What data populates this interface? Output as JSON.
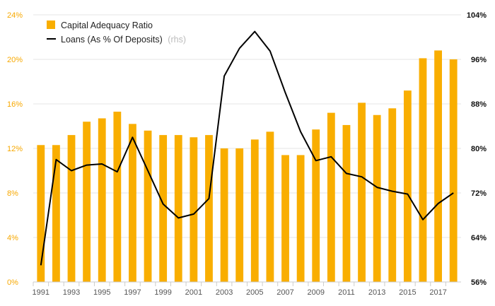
{
  "chart_data": {
    "type": "bar",
    "title": "",
    "xlabel": "",
    "ylabel": "",
    "colors": {
      "bar": "#f9ae00",
      "line": "#000000",
      "left_axis": "#f7a800",
      "right_axis": "#111111",
      "grid": "#e6e6e6"
    },
    "years": [
      1991,
      1992,
      1993,
      1994,
      1995,
      1996,
      1997,
      1998,
      1999,
      2000,
      2001,
      2002,
      2003,
      2004,
      2005,
      2006,
      2007,
      2008,
      2009,
      2010,
      2011,
      2012,
      2013,
      2014,
      2015,
      2016,
      2017,
      2018
    ],
    "x_tick_labels": [
      "1991",
      "1993",
      "1995",
      "1997",
      "1999",
      "2001",
      "2003",
      "2005",
      "2007",
      "2009",
      "2011",
      "2013",
      "2015",
      "2017"
    ],
    "series": [
      {
        "name": "Capital Adequacy Ratio",
        "axis": "left",
        "type": "bar",
        "values": [
          12.3,
          12.3,
          13.2,
          14.4,
          14.7,
          15.3,
          14.2,
          13.6,
          13.2,
          13.2,
          13.0,
          13.2,
          12.0,
          12.0,
          12.8,
          13.5,
          11.4,
          11.4,
          13.7,
          15.2,
          14.1,
          16.1,
          15.0,
          15.6,
          17.2,
          20.1,
          20.8,
          20.0
        ]
      },
      {
        "name": "Loans (As % Of Deposits)",
        "note": "(rhs)",
        "axis": "right",
        "type": "line",
        "values": [
          59.0,
          78.0,
          76.0,
          77.0,
          77.2,
          75.8,
          82.0,
          76.0,
          70.0,
          67.5,
          68.2,
          71.0,
          93.0,
          98.0,
          101.0,
          97.5,
          90.0,
          83.0,
          77.8,
          78.5,
          75.5,
          74.9,
          73.0,
          72.3,
          71.8,
          67.2,
          70.1,
          72.0
        ]
      }
    ],
    "y_left": {
      "ylim": [
        0,
        24
      ],
      "ticks": [
        0,
        4,
        8,
        12,
        16,
        20,
        24
      ],
      "tick_labels": [
        "0%",
        "4%",
        "8%",
        "12%",
        "16%",
        "20%",
        "24%"
      ]
    },
    "y_right": {
      "ylim": [
        56,
        104
      ],
      "ticks": [
        56,
        64,
        72,
        80,
        88,
        96,
        104
      ],
      "tick_labels": [
        "56%",
        "64%",
        "72%",
        "80%",
        "88%",
        "96%",
        "104%"
      ]
    },
    "grid": true,
    "legend": {
      "position": "top-left",
      "entries": [
        "Capital Adequacy Ratio",
        "Loans (As % Of Deposits)"
      ],
      "note": "(rhs)"
    }
  }
}
